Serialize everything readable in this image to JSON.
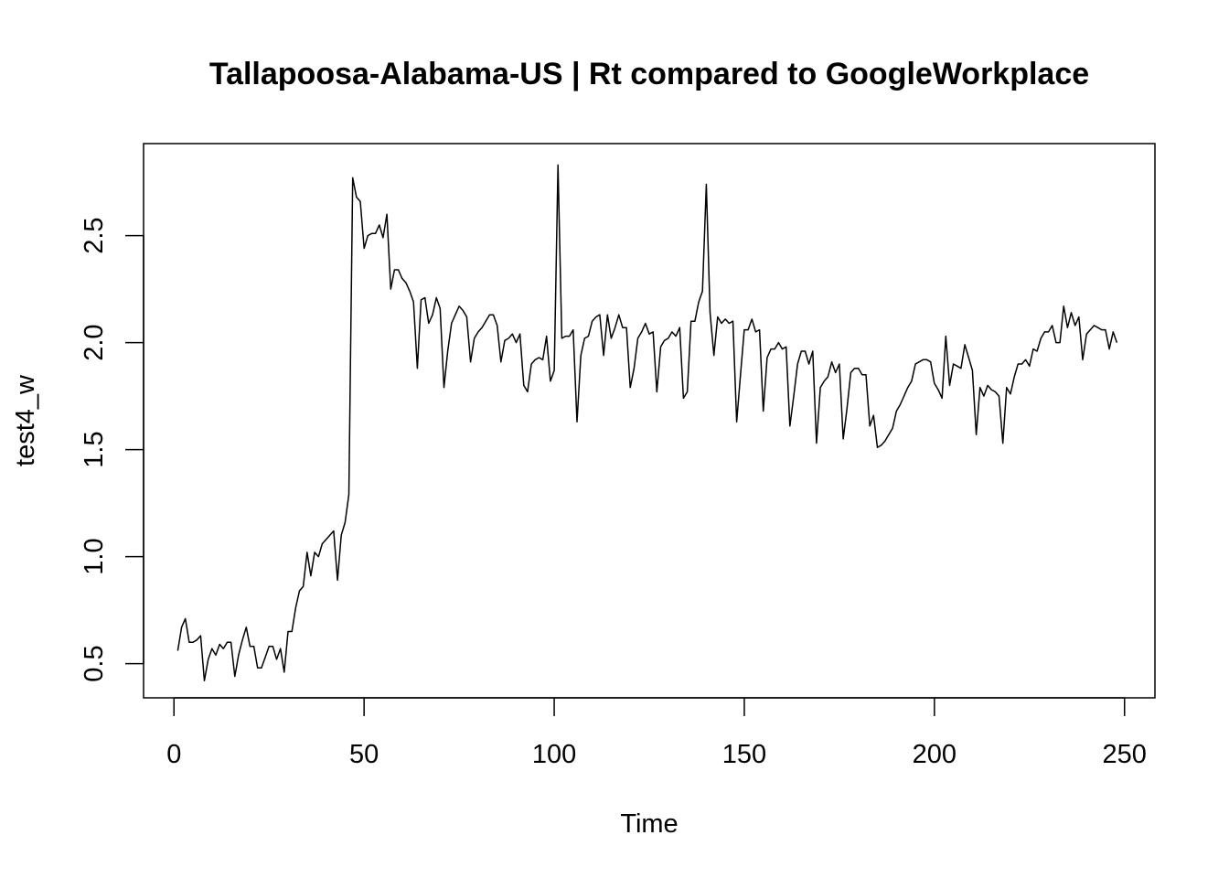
{
  "chart_data": {
    "type": "line",
    "title": "Tallapoosa-Alabama-US | Rt compared to GoogleWorkplace",
    "xlabel": "Time",
    "ylabel": "test4_w",
    "xlim": [
      -8,
      258
    ],
    "ylim": [
      0.34,
      2.93
    ],
    "x_ticks": [
      0,
      50,
      100,
      150,
      200,
      250
    ],
    "y_ticks": [
      0.5,
      1.0,
      1.5,
      2.0,
      2.5
    ],
    "x_tick_labels": [
      "0",
      "50",
      "100",
      "150",
      "200",
      "250"
    ],
    "y_tick_labels": [
      "0.5",
      "1.0",
      "1.5",
      "2.0",
      "2.5"
    ],
    "grid": false,
    "line_color": "#000000",
    "series": [
      {
        "x_start": 1,
        "values": [
          0.56,
          0.67,
          0.71,
          0.6,
          0.6,
          0.61,
          0.63,
          0.42,
          0.52,
          0.57,
          0.54,
          0.59,
          0.57,
          0.6,
          0.6,
          0.44,
          0.54,
          0.61,
          0.67,
          0.58,
          0.58,
          0.48,
          0.48,
          0.53,
          0.58,
          0.58,
          0.52,
          0.57,
          0.46,
          0.65,
          0.65,
          0.76,
          0.84,
          0.86,
          1.02,
          0.91,
          1.02,
          1.0,
          1.06,
          1.08,
          1.1,
          1.12,
          0.89,
          1.1,
          1.16,
          1.29,
          2.77,
          2.68,
          2.66,
          2.44,
          2.5,
          2.51,
          2.51,
          2.55,
          2.49,
          2.6,
          2.25,
          2.34,
          2.34,
          2.3,
          2.28,
          2.24,
          2.19,
          1.88,
          2.2,
          2.21,
          2.09,
          2.13,
          2.21,
          2.16,
          1.79,
          1.96,
          2.09,
          2.13,
          2.17,
          2.15,
          2.12,
          1.91,
          2.02,
          2.05,
          2.07,
          2.1,
          2.13,
          2.13,
          2.08,
          1.91,
          2.01,
          2.02,
          2.04,
          2.0,
          2.04,
          1.8,
          1.77,
          1.9,
          1.92,
          1.93,
          1.92,
          2.03,
          1.82,
          1.87,
          2.83,
          2.02,
          2.03,
          2.03,
          2.06,
          1.63,
          1.94,
          2.02,
          2.03,
          2.1,
          2.12,
          2.13,
          1.94,
          2.13,
          2.02,
          2.07,
          2.13,
          2.07,
          2.07,
          1.79,
          1.88,
          2.02,
          2.05,
          2.09,
          2.04,
          2.05,
          1.77,
          1.98,
          2.01,
          2.02,
          2.05,
          2.03,
          2.07,
          1.74,
          1.77,
          2.1,
          2.1,
          2.19,
          2.24,
          2.74,
          2.14,
          1.94,
          2.12,
          2.09,
          2.11,
          2.09,
          2.1,
          1.63,
          1.85,
          2.06,
          2.06,
          2.11,
          2.05,
          2.06,
          1.68,
          1.93,
          1.97,
          1.97,
          2.0,
          1.97,
          1.98,
          1.61,
          1.75,
          1.9,
          1.96,
          1.96,
          1.9,
          1.96,
          1.53,
          1.79,
          1.82,
          1.84,
          1.91,
          1.86,
          1.9,
          1.55,
          1.69,
          1.86,
          1.88,
          1.88,
          1.85,
          1.85,
          1.61,
          1.66,
          1.51,
          1.52,
          1.54,
          1.57,
          1.6,
          1.68,
          1.71,
          1.75,
          1.79,
          1.82,
          1.9,
          1.91,
          1.92,
          1.92,
          1.91,
          1.81,
          1.78,
          1.74,
          2.03,
          1.8,
          1.9,
          1.89,
          1.88,
          1.99,
          1.93,
          1.87,
          1.57,
          1.79,
          1.75,
          1.8,
          1.78,
          1.77,
          1.75,
          1.53,
          1.79,
          1.76,
          1.84,
          1.9,
          1.9,
          1.92,
          1.89,
          1.97,
          1.96,
          2.02,
          2.05,
          2.05,
          2.08,
          2.0,
          2.0,
          2.17,
          2.07,
          2.14,
          2.08,
          2.12,
          1.92,
          2.04,
          2.06,
          2.08,
          2.07,
          2.06,
          2.06,
          1.97,
          2.05,
          2.0
        ]
      }
    ]
  }
}
